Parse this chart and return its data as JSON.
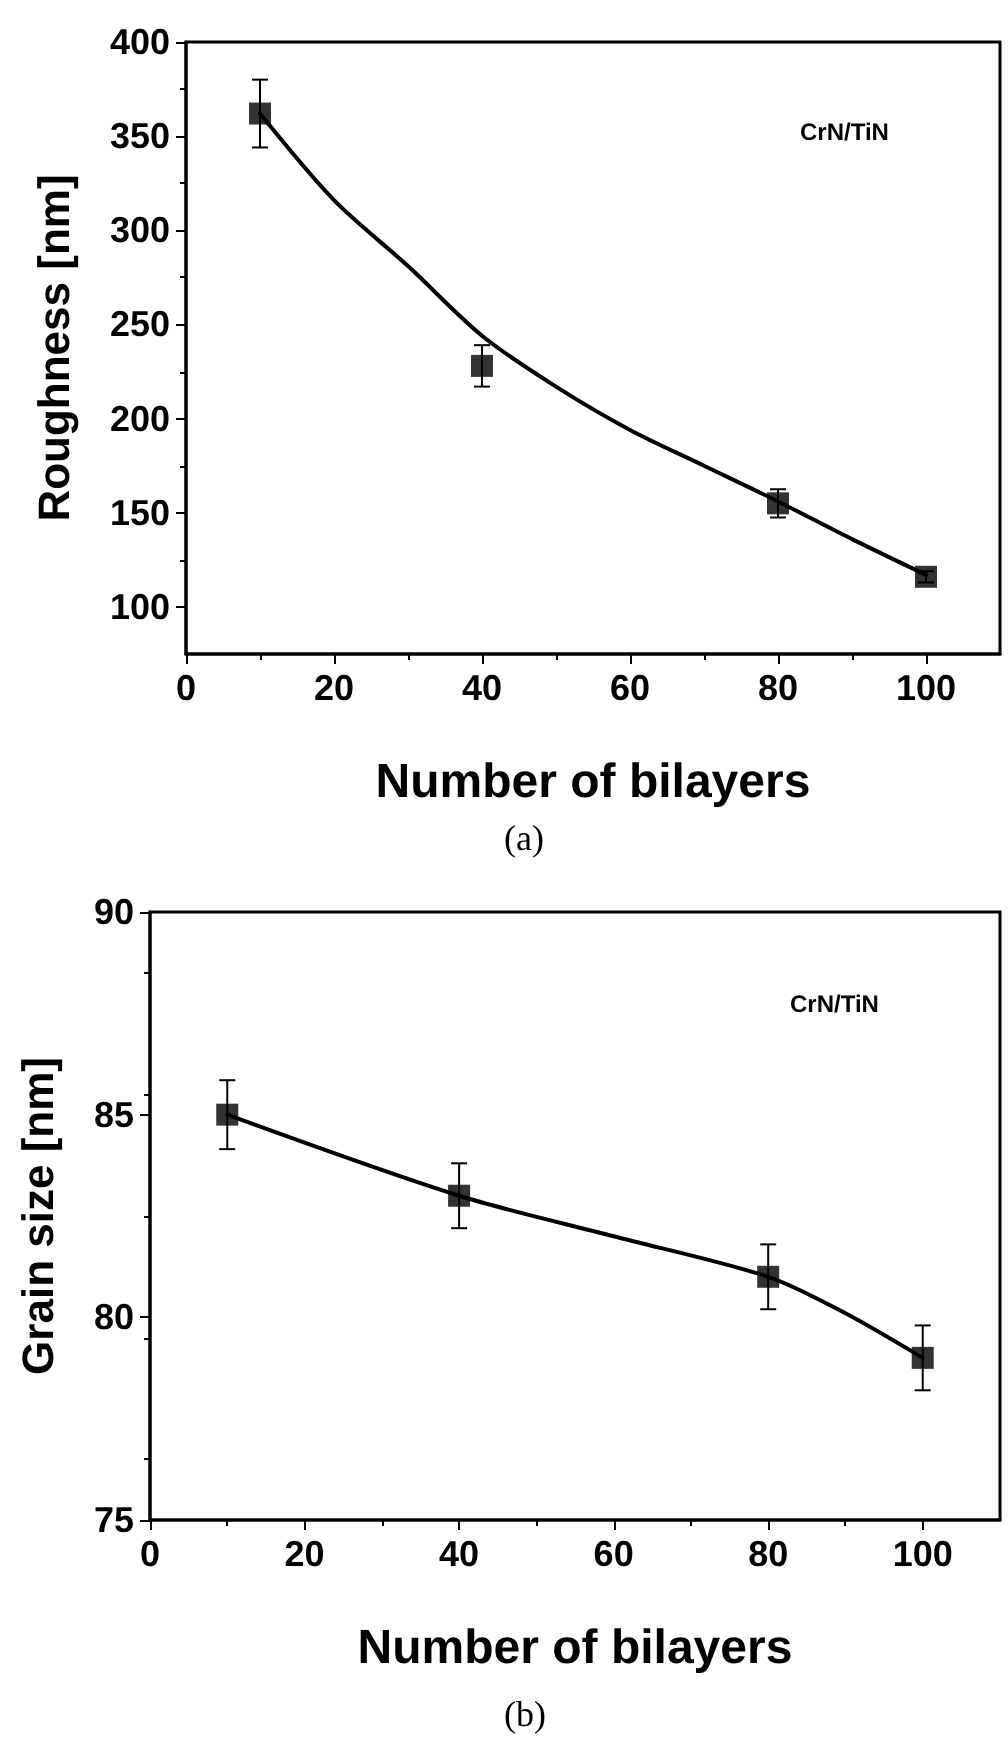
{
  "chart_data": [
    {
      "type": "scatter",
      "xlabel": "Number of bilayers",
      "ylabel": "Roughness [nm]",
      "xlim": [
        0,
        110
      ],
      "xticks": [
        0,
        20,
        40,
        60,
        80,
        100
      ],
      "ylim": [
        75,
        400
      ],
      "yticks": [
        100,
        150,
        200,
        250,
        300,
        350,
        400
      ],
      "grid": false,
      "annotations": [
        "CrN/TiN",
        "(a)"
      ],
      "series": [
        {
          "color": "#000000",
          "marker": "square",
          "x": [
            10,
            40,
            80,
            100
          ],
          "values": [
            362,
            228,
            155,
            116
          ],
          "errors": [
            18,
            11,
            7.5,
            3
          ]
        },
        {
          "type": "line",
          "color": "#000000",
          "marker": "none",
          "line_style": "solid",
          "x": [
            10,
            20,
            30,
            40,
            50,
            60,
            70,
            80,
            90,
            100
          ],
          "values": [
            362,
            316,
            281,
            244,
            217,
            194,
            175,
            156,
            136,
            117
          ]
        }
      ]
    },
    {
      "type": "scatter",
      "xlabel": "Number of bilayers",
      "ylabel": "Grain size [nm]",
      "xlim": [
        0,
        110
      ],
      "xticks": [
        0,
        20,
        40,
        60,
        80,
        100
      ],
      "ylim": [
        75,
        90
      ],
      "yticks": [
        75,
        80,
        85,
        90
      ],
      "grid": false,
      "annotations": [
        "CrN/TiN",
        "(b)"
      ],
      "series": [
        {
          "color": "#000000",
          "marker": "square",
          "x": [
            10,
            40,
            80,
            100
          ],
          "values": [
            85,
            83,
            81,
            79
          ],
          "errors": [
            0.85,
            0.8,
            0.8,
            0.8
          ]
        },
        {
          "type": "line",
          "color": "#000000",
          "marker": "none",
          "line_style": "solid",
          "x": [
            10,
            40,
            60,
            80,
            90,
            100
          ],
          "values": [
            85,
            83,
            82,
            81,
            80.1,
            79
          ]
        }
      ]
    }
  ]
}
